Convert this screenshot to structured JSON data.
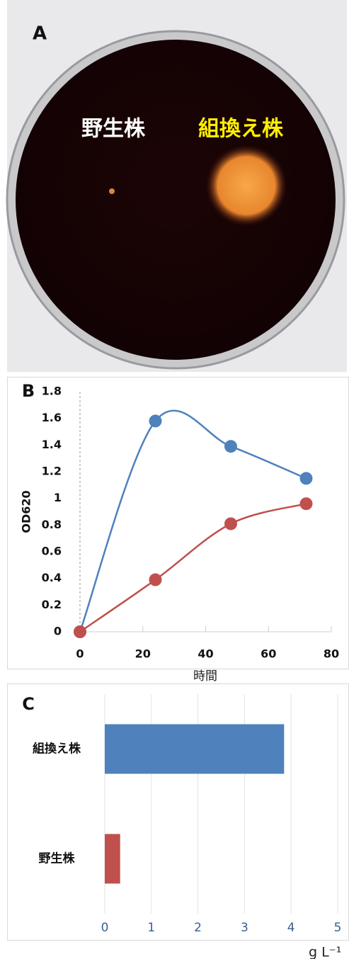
{
  "panel_a": {
    "label": "A",
    "labels": [
      "野生株",
      "組換え株"
    ]
  },
  "chart_data": [
    {
      "type": "line",
      "panel_label": "B",
      "x_label": "時間",
      "y_label": "OD620",
      "x": [
        0,
        24,
        48,
        72
      ],
      "series": [
        {
          "name": "組換え株",
          "color": "#4f81bd",
          "values": [
            0,
            1.58,
            1.39,
            1.15
          ]
        },
        {
          "name": "野生株",
          "color": "#c0504d",
          "values": [
            0,
            0.39,
            0.81,
            0.96
          ]
        }
      ],
      "xlim": [
        0,
        80
      ],
      "xticks": [
        0,
        20,
        40,
        60,
        80
      ],
      "ylim": [
        0,
        1.8
      ],
      "yticks": [
        0,
        0.2,
        0.4,
        0.6,
        0.8,
        1,
        1.2,
        1.4,
        1.6,
        1.8
      ],
      "smooth": true
    },
    {
      "type": "bar",
      "panel_label": "C",
      "orientation": "horizontal",
      "x_label": "g L⁻¹",
      "categories": [
        "組換え株",
        "野生株"
      ],
      "values": [
        3.85,
        0.33
      ],
      "colors": [
        "#4f81bd",
        "#c0504d"
      ],
      "xlim": [
        0,
        5
      ],
      "xticks": [
        0,
        1,
        2,
        3,
        4,
        5
      ],
      "grid": true
    }
  ]
}
